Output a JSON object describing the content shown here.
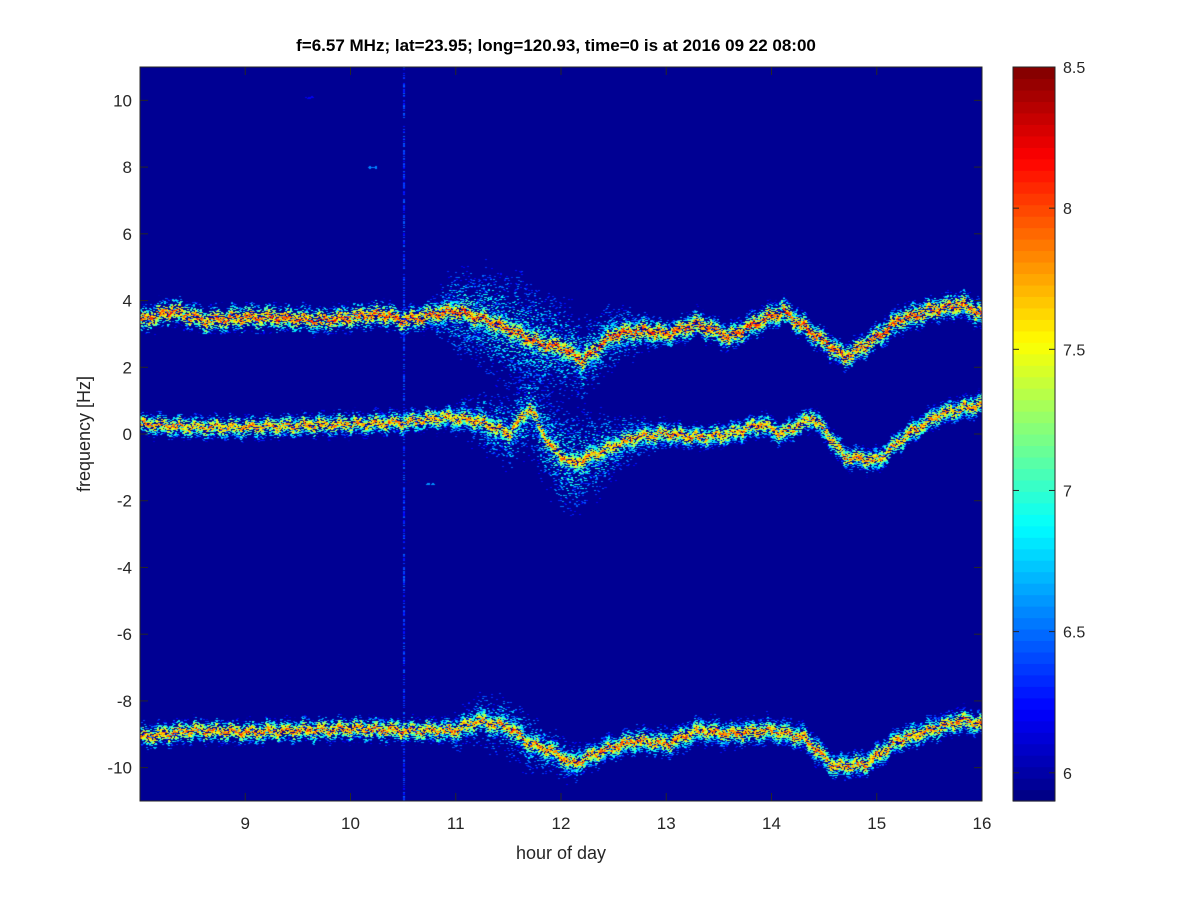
{
  "chart_data": {
    "type": "heatmap",
    "title": "f=6.57 MHz;  lat=23.95; long=120.93, time=0 is at 2016 09 22 08:00",
    "xlabel": "hour of day",
    "ylabel": "frequency [Hz]",
    "xlim": [
      8,
      16
    ],
    "ylim": [
      -11,
      11
    ],
    "x_ticks": [
      9,
      10,
      11,
      12,
      13,
      14,
      15,
      16
    ],
    "y_ticks": [
      -10,
      -8,
      -6,
      -4,
      -2,
      0,
      2,
      4,
      6,
      8,
      10
    ],
    "x_tick_labels": [
      "9",
      "10",
      "11",
      "12",
      "13",
      "14",
      "15",
      "16"
    ],
    "y_tick_labels": [
      "-10",
      "-8",
      "-6",
      "-4",
      "-2",
      "0",
      "2",
      "4",
      "6",
      "8",
      "10"
    ],
    "grid": false,
    "background_value": 5.95,
    "colorbar": {
      "range": [
        5.9,
        8.5
      ],
      "ticks": [
        6,
        6.5,
        7,
        7.5,
        8,
        8.5
      ],
      "tick_labels": [
        "6",
        "6.5",
        "7",
        "7.5",
        "8",
        "8.5"
      ],
      "colormap": "jet"
    },
    "traces": [
      {
        "points": [
          [
            8.0,
            3.4
          ],
          [
            8.3,
            3.7
          ],
          [
            8.6,
            3.4
          ],
          [
            9.0,
            3.5
          ],
          [
            9.3,
            3.5
          ],
          [
            9.7,
            3.4
          ],
          [
            10.0,
            3.5
          ],
          [
            10.3,
            3.6
          ],
          [
            10.5,
            3.4
          ],
          [
            10.8,
            3.6
          ],
          [
            11.0,
            3.7
          ],
          [
            11.3,
            3.4
          ],
          [
            11.6,
            3.0
          ],
          [
            11.8,
            2.7
          ],
          [
            12.0,
            2.6
          ],
          [
            12.2,
            2.2
          ],
          [
            12.5,
            3.0
          ],
          [
            12.8,
            3.1
          ],
          [
            13.0,
            3.0
          ],
          [
            13.3,
            3.3
          ],
          [
            13.6,
            2.9
          ],
          [
            13.9,
            3.4
          ],
          [
            14.1,
            3.7
          ],
          [
            14.4,
            3.0
          ],
          [
            14.7,
            2.3
          ],
          [
            15.0,
            2.9
          ],
          [
            15.2,
            3.4
          ],
          [
            15.5,
            3.7
          ],
          [
            15.8,
            3.9
          ],
          [
            16.0,
            3.6
          ]
        ],
        "peak": 8.25,
        "spread_y": 0.22,
        "scatter_by_hour": [
          [
            8,
            0.12
          ],
          [
            10.7,
            0.2
          ],
          [
            11.0,
            1.0
          ],
          [
            11.6,
            1.4
          ],
          [
            12.3,
            0.9
          ],
          [
            13.0,
            0.3
          ],
          [
            16,
            0.3
          ]
        ]
      },
      {
        "points": [
          [
            8.0,
            0.3
          ],
          [
            8.5,
            0.2
          ],
          [
            9.0,
            0.2
          ],
          [
            9.5,
            0.25
          ],
          [
            10.0,
            0.3
          ],
          [
            10.5,
            0.35
          ],
          [
            10.9,
            0.5
          ],
          [
            11.2,
            0.4
          ],
          [
            11.5,
            0.0
          ],
          [
            11.7,
            0.8
          ],
          [
            11.9,
            -0.4
          ],
          [
            12.1,
            -0.9
          ],
          [
            12.4,
            -0.5
          ],
          [
            12.7,
            -0.1
          ],
          [
            13.0,
            0.0
          ],
          [
            13.3,
            -0.1
          ],
          [
            13.6,
            0.0
          ],
          [
            13.9,
            0.3
          ],
          [
            14.1,
            0.0
          ],
          [
            14.4,
            0.5
          ],
          [
            14.7,
            -0.7
          ],
          [
            15.0,
            -0.8
          ],
          [
            15.3,
            0.0
          ],
          [
            15.6,
            0.6
          ],
          [
            16.0,
            0.9
          ]
        ],
        "peak": 8.1,
        "spread_y": 0.2,
        "scatter_by_hour": [
          [
            8,
            0.1
          ],
          [
            10.8,
            0.2
          ],
          [
            11.5,
            0.9
          ],
          [
            12.1,
            1.3
          ],
          [
            12.6,
            0.6
          ],
          [
            13.2,
            0.25
          ],
          [
            16,
            0.3
          ]
        ]
      },
      {
        "points": [
          [
            8.0,
            -9.1
          ],
          [
            8.5,
            -8.9
          ],
          [
            9.0,
            -8.95
          ],
          [
            9.5,
            -8.9
          ],
          [
            10.0,
            -8.85
          ],
          [
            10.5,
            -8.9
          ],
          [
            11.0,
            -8.9
          ],
          [
            11.2,
            -8.6
          ],
          [
            11.5,
            -8.8
          ],
          [
            11.7,
            -9.3
          ],
          [
            11.9,
            -9.5
          ],
          [
            12.1,
            -9.9
          ],
          [
            12.4,
            -9.5
          ],
          [
            12.7,
            -9.2
          ],
          [
            13.0,
            -9.3
          ],
          [
            13.3,
            -8.9
          ],
          [
            13.6,
            -9.0
          ],
          [
            14.0,
            -8.9
          ],
          [
            14.3,
            -9.1
          ],
          [
            14.6,
            -10.0
          ],
          [
            14.9,
            -9.9
          ],
          [
            15.2,
            -9.2
          ],
          [
            15.5,
            -8.9
          ],
          [
            15.8,
            -8.6
          ],
          [
            16.0,
            -8.7
          ]
        ],
        "peak": 8.15,
        "spread_y": 0.2,
        "scatter_by_hour": [
          [
            8,
            0.1
          ],
          [
            10.7,
            0.2
          ],
          [
            11.2,
            0.6
          ],
          [
            11.6,
            0.7
          ],
          [
            12.2,
            0.4
          ],
          [
            16,
            0.3
          ]
        ]
      }
    ],
    "vertical_streak": {
      "x": 10.5,
      "value": 6.35
    },
    "isolated_blips": [
      {
        "x": 10.2,
        "y": 8.0,
        "value": 6.55
      },
      {
        "x": 10.75,
        "y": -1.5,
        "value": 6.6
      },
      {
        "x": 9.6,
        "y": 10.1,
        "value": 6.2
      }
    ]
  }
}
